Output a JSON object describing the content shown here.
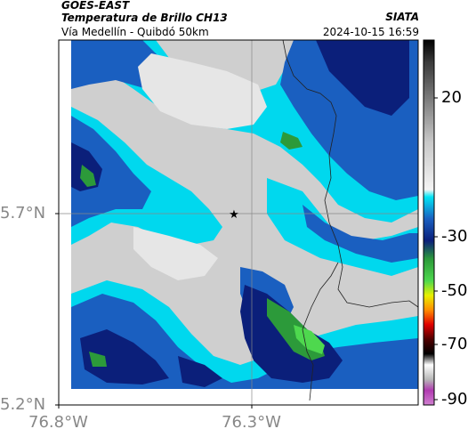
{
  "header": {
    "satellite": "GOES-EAST",
    "product": "Temperatura de Brillo CH13",
    "organization": "SIATA",
    "region": "Vía Medellín - Quibdó 50km",
    "datetime": "2024-10-15 16:59"
  },
  "axes": {
    "lat_ticks": [
      "5.7°N",
      "5.2°N"
    ],
    "lon_ticks": [
      "76.8°W",
      "76.3°W"
    ]
  },
  "colorbar": {
    "ticks": [
      "20",
      "-30",
      "-50",
      "-70",
      "-90"
    ],
    "units": ""
  },
  "map": {
    "marker": "star-icon",
    "colors": {
      "cloud_free_gray": "#c8c8c8",
      "cold_cyan": "#00e5f5",
      "cold_blue": "#1a5fc0",
      "very_cold_navy": "#0b1f7a",
      "deep_convection_green": "#2c9a3a",
      "bright_green": "#4ed84e"
    }
  }
}
